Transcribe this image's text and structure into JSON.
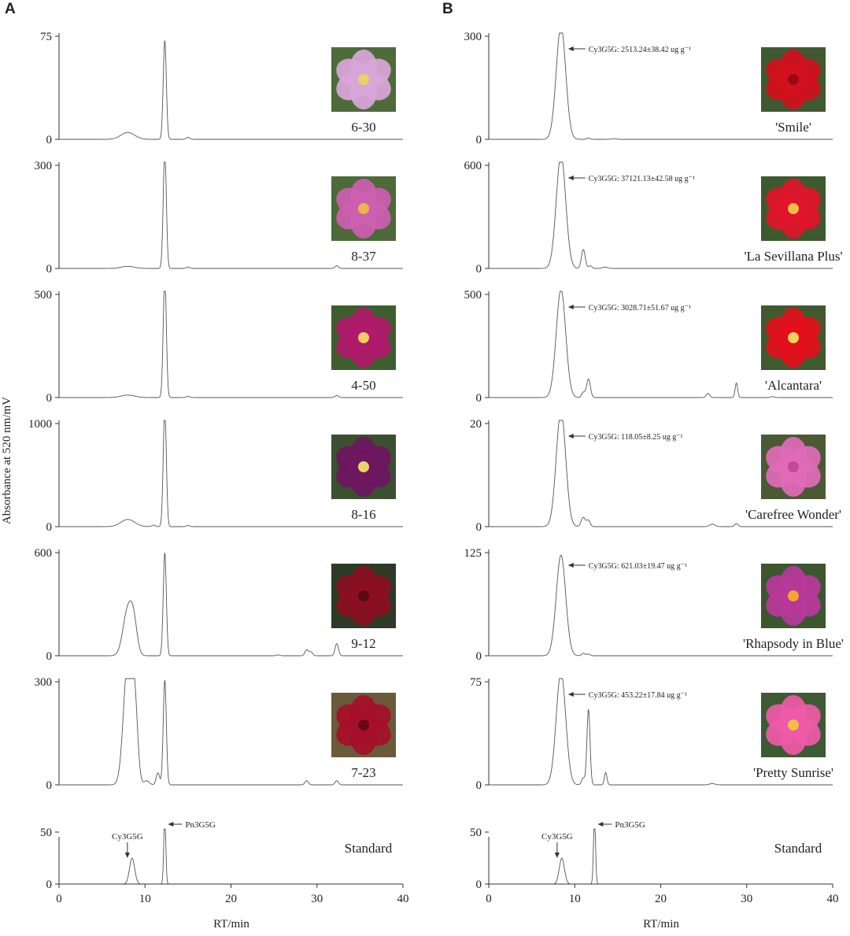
{
  "ylabel": "Absorbance at 520 nm/mV",
  "xlabel": "RT/min",
  "x_range": [
    0,
    40
  ],
  "x_ticks": [
    0,
    10,
    20,
    30,
    40
  ],
  "colors": {
    "trace": "#555555",
    "axis": "#333333",
    "text": "#222222"
  },
  "chart_data": [
    {
      "panel": "A",
      "type": "line",
      "traces": [
        {
          "label": "6-30",
          "ylim": [
            0,
            75
          ],
          "yticks": [
            0,
            75
          ],
          "flower_color": "#d9a6d8",
          "flower_center": "#e8d26a",
          "bg_color": "#4e6b3a",
          "peaks": [
            [
              8.0,
              5,
              0.8
            ],
            [
              12.3,
              72,
              0.18
            ],
            [
              15.0,
              1.5,
              0.2
            ]
          ],
          "annotation": null
        },
        {
          "label": "8-37",
          "ylim": [
            0,
            300
          ],
          "yticks": [
            0,
            300
          ],
          "flower_color": "#cc5fb0",
          "flower_center": "#e7b84a",
          "bg_color": "#4d6a38",
          "peaks": [
            [
              8.0,
              6,
              0.8
            ],
            [
              12.3,
              345,
              0.18
            ],
            [
              15.0,
              4,
              0.2
            ],
            [
              32.3,
              8,
              0.2
            ]
          ],
          "annotation": null
        },
        {
          "label": "4-50",
          "ylim": [
            0,
            500
          ],
          "yticks": [
            0,
            500
          ],
          "flower_color": "#b01a6a",
          "flower_center": "#f0d060",
          "bg_color": "#3f5e2f",
          "peaks": [
            [
              8.0,
              12,
              0.8
            ],
            [
              12.3,
              590,
              0.18
            ],
            [
              15.0,
              6,
              0.2
            ],
            [
              32.3,
              10,
              0.2
            ]
          ],
          "annotation": null
        },
        {
          "label": "8-16",
          "ylim": [
            0,
            1000
          ],
          "yticks": [
            0,
            1000
          ],
          "flower_color": "#6e1660",
          "flower_center": "#e9d46a",
          "bg_color": "#3a5030",
          "peaks": [
            [
              8.0,
              70,
              0.8
            ],
            [
              11.0,
              15,
              0.2
            ],
            [
              12.3,
              1150,
              0.18
            ],
            [
              15.0,
              12,
              0.2
            ]
          ],
          "annotation": null
        },
        {
          "label": "9-12",
          "ylim": [
            0,
            600
          ],
          "yticks": [
            0,
            600
          ],
          "flower_color": "#8a1020",
          "flower_center": "#5a0a14",
          "bg_color": "#2d3a25",
          "peaks": [
            [
              8.0,
              265,
              0.55
            ],
            [
              8.7,
              150,
              0.4
            ],
            [
              12.3,
              600,
              0.18
            ],
            [
              25.5,
              5,
              0.2
            ],
            [
              28.8,
              35,
              0.2
            ],
            [
              29.3,
              22,
              0.2
            ],
            [
              32.3,
              70,
              0.2
            ]
          ],
          "annotation": null
        },
        {
          "label": "7-23",
          "ylim": [
            0,
            300
          ],
          "yticks": [
            0,
            300
          ],
          "flower_color": "#a51028",
          "flower_center": "#6a0818",
          "bg_color": "#6b5a3a",
          "peaks": [
            [
              8.0,
              360,
              0.5
            ],
            [
              8.8,
              210,
              0.35
            ],
            [
              10.2,
              12,
              0.3
            ],
            [
              11.5,
              35,
              0.2
            ],
            [
              12.3,
              305,
              0.18
            ],
            [
              28.8,
              12,
              0.2
            ],
            [
              32.3,
              12,
              0.2
            ]
          ],
          "annotation": null
        }
      ],
      "standard": {
        "label": "Standard",
        "ylim": [
          0,
          50
        ],
        "yticks": [
          0,
          50
        ],
        "peaks": [
          [
            8.5,
            25,
            0.3
          ],
          [
            12.3,
            65,
            0.12
          ]
        ],
        "markers": [
          {
            "name": "Cy3G5G",
            "rt": 8.5
          },
          {
            "name": "Pn3G5G",
            "rt": 12.3
          }
        ]
      }
    },
    {
      "panel": "B",
      "type": "line",
      "traces": [
        {
          "label": "'Smile'",
          "ylim": [
            0,
            300
          ],
          "yticks": [
            0,
            300
          ],
          "flower_color": "#d2101e",
          "flower_center": "#9a0a14",
          "bg_color": "#3f5a30",
          "peaks": [
            [
              8.4,
              330,
              0.55
            ],
            [
              11.6,
              4,
              0.2
            ],
            [
              14.5,
              2,
              0.3
            ]
          ],
          "annotation": "Cy3G5G: 2513.24±38.42 ug g⁻¹"
        },
        {
          "label": "'La Sevillana Plus'",
          "ylim": [
            0,
            600
          ],
          "yticks": [
            0,
            600
          ],
          "flower_color": "#e0142a",
          "flower_center": "#f0c040",
          "bg_color": "#3d5a2f",
          "peaks": [
            [
              8.4,
              660,
              0.55
            ],
            [
              11.0,
              110,
              0.22
            ],
            [
              11.8,
              15,
              0.2
            ],
            [
              13.5,
              8,
              0.3
            ]
          ],
          "annotation": "Cy3G5G: 37121.13±42.58 ug g⁻¹"
        },
        {
          "label": "'Alcantara'",
          "ylim": [
            0,
            500
          ],
          "yticks": [
            0,
            500
          ],
          "flower_color": "#e2101c",
          "flower_center": "#f3d25c",
          "bg_color": "#405a30",
          "peaks": [
            [
              8.4,
              525,
              0.55
            ],
            [
              11.0,
              25,
              0.2
            ],
            [
              11.6,
              90,
              0.22
            ],
            [
              25.5,
              20,
              0.2
            ],
            [
              28.8,
              70,
              0.15
            ],
            [
              33.0,
              5,
              0.2
            ]
          ],
          "annotation": "Cy3G5G: 3028.71±51.67 ug g⁻¹"
        },
        {
          "label": "'Carefree Wonder'",
          "ylim": [
            0,
            20
          ],
          "yticks": [
            0,
            20
          ],
          "flower_color": "#e06ab8",
          "flower_center": "#c44896",
          "bg_color": "#4a5a35",
          "peaks": [
            [
              8.4,
              22.5,
              0.55
            ],
            [
              11.0,
              1.8,
              0.25
            ],
            [
              11.6,
              1.2,
              0.2
            ],
            [
              26.0,
              0.5,
              0.3
            ],
            [
              28.8,
              0.6,
              0.2
            ]
          ],
          "annotation": "Cy3G5G: 118.05±8.25 ug g⁻¹"
        },
        {
          "label": "'Rhapsody in Blue'",
          "ylim": [
            0,
            125
          ],
          "yticks": [
            0,
            125
          ],
          "flower_color": "#b8389a",
          "flower_center": "#f0a830",
          "bg_color": "#3c5630",
          "peaks": [
            [
              8.4,
              122,
              0.55
            ],
            [
              11.0,
              3,
              0.2
            ],
            [
              11.6,
              2,
              0.2
            ]
          ],
          "annotation": "Cy3G5G: 621.03±19.47 ug g⁻¹"
        },
        {
          "label": "'Pretty Sunrise'",
          "ylim": [
            0,
            75
          ],
          "yticks": [
            0,
            75
          ],
          "flower_color": "#ee5aa8",
          "flower_center": "#f0c040",
          "bg_color": "#3e5a34",
          "peaks": [
            [
              8.4,
              82,
              0.55
            ],
            [
              11.0,
              5,
              0.2
            ],
            [
              11.6,
              55,
              0.18
            ],
            [
              13.6,
              9,
              0.15
            ],
            [
              26.0,
              1,
              0.3
            ]
          ],
          "annotation": "Cy3G5G: 453.22±17.84 ug g⁻¹"
        }
      ],
      "standard": {
        "label": "Standard",
        "ylim": [
          0,
          50
        ],
        "yticks": [
          0,
          50
        ],
        "peaks": [
          [
            8.5,
            25,
            0.3
          ],
          [
            12.3,
            65,
            0.12
          ]
        ],
        "markers": [
          {
            "name": "Cy3G5G",
            "rt": 8.5
          },
          {
            "name": "Pn3G5G",
            "rt": 12.3
          }
        ]
      }
    }
  ]
}
